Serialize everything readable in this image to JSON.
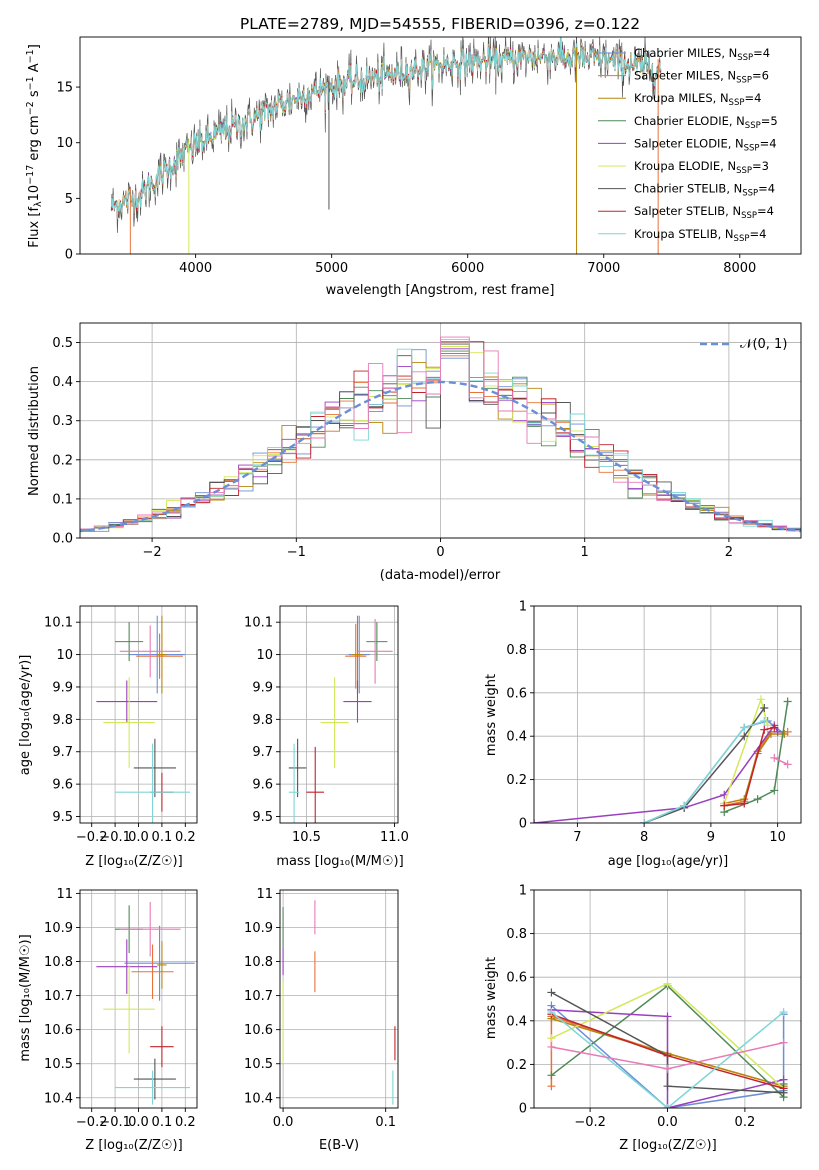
{
  "figure_title": "PLATE=2789, MJD=54555, FIBERID=0396, z=0.122",
  "colors": {
    "Chabrier MILES": "#6b8fd6",
    "Salpeter MILES": "#e8733a",
    "Kroupa MILES": "#b8860b",
    "Chabrier ELODIE": "#4f8a56",
    "Salpeter ELODIE": "#9a3fbf",
    "Kroupa ELODIE": "#d4e85a",
    "Chabrier STELIB": "#555555",
    "Salpeter STELIB": "#c0242a",
    "Kroupa STELIB": "#7fd6d6",
    "pink": "#e87ab8",
    "gaussian": "#6b8fd6"
  },
  "chart_data": [
    {
      "type": "line",
      "id": "spectrum",
      "title": "PLATE=2789, MJD=54555, FIBERID=0396, z=0.122",
      "xlabel": "wavelength [Angstrom, rest frame]",
      "ylabel_parts": [
        "Flux [f",
        "λ",
        "10",
        "−17",
        " erg cm",
        "−2",
        " s",
        "−1",
        " A",
        "−1",
        "]"
      ],
      "xlim": [
        3150,
        8450
      ],
      "ylim": [
        0,
        19.5
      ],
      "xticks": [
        4000,
        5000,
        6000,
        7000,
        8000
      ],
      "yticks": [
        0,
        5,
        10,
        15
      ],
      "spectrum_anchors": {
        "x": [
          3400,
          3600,
          3800,
          4000,
          4200,
          4400,
          4600,
          4800,
          5000,
          5200,
          5400,
          5600,
          5800,
          6000,
          6200,
          6400,
          6600,
          6800,
          7000,
          7200,
          7400
        ],
        "y": [
          4.3,
          5.3,
          7.8,
          9.8,
          11.0,
          12.0,
          13.3,
          14.3,
          15.1,
          15.6,
          16.0,
          16.6,
          17.0,
          17.3,
          17.3,
          17.6,
          17.8,
          17.6,
          17.5,
          17.0,
          16.5
        ]
      },
      "legend": {
        "placement": "top-right",
        "entries": [
          {
            "pre": "Chabrier MILES, N",
            "sub": "SSP",
            "post": "=4"
          },
          {
            "pre": "Salpeter MILES, N",
            "sub": "SSP",
            "post": "=6"
          },
          {
            "pre": "Kroupa MILES, N",
            "sub": "SSP",
            "post": "=4"
          },
          {
            "pre": "Chabrier ELODIE, N",
            "sub": "SSP",
            "post": "=5"
          },
          {
            "pre": "Salpeter ELODIE, N",
            "sub": "SSP",
            "post": "=4"
          },
          {
            "pre": "Kroupa ELODIE, N",
            "sub": "SSP",
            "post": "=3"
          },
          {
            "pre": "Chabrier STELIB, N",
            "sub": "SSP",
            "post": "=4"
          },
          {
            "pre": "Salpeter STELIB, N",
            "sub": "SSP",
            "post": "=4"
          },
          {
            "pre": "Kroupa STELIB, N",
            "sub": "SSP",
            "post": "=4"
          }
        ]
      }
    },
    {
      "type": "line",
      "id": "residuals",
      "subtype": "step-histograms",
      "xlabel": "(data-model)/error",
      "ylabel": "Normed distribution",
      "xlim": [
        -2.5,
        2.5
      ],
      "ylim": [
        0,
        0.55
      ],
      "xticks": [
        -2,
        -1,
        0,
        1,
        2
      ],
      "xtick_labels": [
        "−2",
        "−1",
        "0",
        "1",
        "2"
      ],
      "yticks": [
        0.0,
        0.1,
        0.2,
        0.3,
        0.4,
        0.5
      ],
      "ytick_labels": [
        "0.0",
        "0.1",
        "0.2",
        "0.3",
        "0.4",
        "0.5"
      ],
      "grid": true,
      "bin_width": 0.1,
      "legend": {
        "placement": "top-right",
        "label": "𝒩(0, 1)"
      }
    },
    {
      "type": "scatter",
      "id": "age-vs-Z",
      "xlabel": "Z [log₁₀(Z/Z☉)]",
      "ylabel": "age  [log₁₀(age/yr)]",
      "xlim": [
        -0.25,
        0.25
      ],
      "ylim": [
        9.48,
        10.15
      ],
      "xticks": [
        -0.2,
        -0.1,
        0.0,
        0.1,
        0.2
      ],
      "xtick_labels": [
        "−0.2",
        "−0.1",
        "0.0",
        "0.1",
        "0.2"
      ],
      "yticks": [
        9.5,
        9.6,
        9.7,
        9.8,
        9.9,
        10.0,
        10.1
      ],
      "grid": true,
      "errorbars": [
        {
          "color": "Chabrier MILES",
          "x": 0.08,
          "xerr": 0.12,
          "y": 10.0,
          "yerr": 0.12
        },
        {
          "color": "Salpeter MILES",
          "x": 0.09,
          "xerr": 0.1,
          "y": 9.995,
          "yerr": 0.07
        },
        {
          "color": "Kroupa MILES",
          "x": 0.1,
          "xerr": 0.02,
          "y": 10.0,
          "yerr": 0.12
        },
        {
          "color": "Chabrier ELODIE",
          "x": -0.04,
          "xerr": 0.06,
          "y": 10.04,
          "yerr": 0.06
        },
        {
          "color": "Salpeter ELODIE",
          "x": -0.05,
          "xerr": 0.13,
          "y": 9.855,
          "yerr": 0.065
        },
        {
          "color": "Kroupa ELODIE",
          "x": -0.04,
          "xerr": 0.11,
          "y": 9.79,
          "yerr": 0.14
        },
        {
          "color": "Chabrier STELIB",
          "x": 0.07,
          "xerr": 0.09,
          "y": 9.65,
          "yerr": 0.09
        },
        {
          "color": "Salpeter STELIB",
          "x": 0.1,
          "xerr": 0.05,
          "y": 9.575,
          "yerr": 0.06
        },
        {
          "color": "Kroupa STELIB",
          "x": 0.06,
          "xerr": 0.16,
          "y": 9.575,
          "yerr": 0.15
        },
        {
          "color": "pink",
          "x": 0.05,
          "xerr": 0.13,
          "y": 10.01,
          "yerr": 0.08
        }
      ]
    },
    {
      "type": "scatter",
      "id": "age-vs-mass",
      "xlabel": "mass [log₁₀(M/M☉)]",
      "ylabel": "",
      "xlim": [
        10.35,
        11.02
      ],
      "ylim": [
        9.48,
        10.15
      ],
      "xticks": [
        10.5,
        11.0
      ],
      "xtick_labels": [
        "10.5",
        "11.0"
      ],
      "yticks": [
        9.5,
        9.6,
        9.7,
        9.8,
        9.9,
        10.0,
        10.1
      ],
      "grid": true,
      "errorbars": [
        {
          "color": "Chabrier MILES",
          "x": 10.8,
          "xerr": 0.06,
          "y": 10.0,
          "yerr": 0.12
        },
        {
          "color": "Salpeter MILES",
          "x": 10.78,
          "xerr": 0.06,
          "y": 9.995,
          "yerr": 0.1
        },
        {
          "color": "Kroupa MILES",
          "x": 10.79,
          "xerr": 0.03,
          "y": 10.0,
          "yerr": 0.12
        },
        {
          "color": "Chabrier ELODIE",
          "x": 10.9,
          "xerr": 0.06,
          "y": 10.04,
          "yerr": 0.06
        },
        {
          "color": "Salpeter ELODIE",
          "x": 10.79,
          "xerr": 0.08,
          "y": 9.855,
          "yerr": 0.065
        },
        {
          "color": "Kroupa ELODIE",
          "x": 10.66,
          "xerr": 0.08,
          "y": 9.79,
          "yerr": 0.14
        },
        {
          "color": "Chabrier STELIB",
          "x": 10.45,
          "xerr": 0.05,
          "y": 9.65,
          "yerr": 0.09
        },
        {
          "color": "Salpeter STELIB",
          "x": 10.55,
          "xerr": 0.05,
          "y": 9.575,
          "yerr": 0.14
        },
        {
          "color": "Kroupa STELIB",
          "x": 10.43,
          "xerr": 0.03,
          "y": 9.575,
          "yerr": 0.15
        },
        {
          "color": "pink",
          "x": 10.89,
          "xerr": 0.1,
          "y": 10.01,
          "yerr": 0.1
        }
      ]
    },
    {
      "type": "line",
      "id": "massweight-vs-age",
      "xlabel": "age  [log₁₀(age/yr)]",
      "ylabel": "mass weight",
      "xlim": [
        6.35,
        10.35
      ],
      "ylim": [
        0,
        1.0
      ],
      "xticks": [
        7,
        8,
        9,
        10
      ],
      "yticks": [
        0.0,
        0.2,
        0.4,
        0.6,
        0.8,
        1.0
      ],
      "grid": true,
      "series": [
        {
          "color": "Chabrier MILES",
          "x": [
            8.0,
            8.6,
            9.5,
            9.85,
            10.1
          ],
          "y": [
            0.0,
            0.08,
            0.44,
            0.47,
            0.41
          ]
        },
        {
          "color": "Salpeter MILES",
          "x": [
            9.2,
            9.5,
            9.7,
            9.9,
            10.15
          ],
          "y": [
            0.08,
            0.1,
            0.33,
            0.42,
            0.42
          ]
        },
        {
          "color": "Kroupa MILES",
          "x": [
            9.2,
            9.5,
            9.7,
            9.9,
            10.1
          ],
          "y": [
            0.09,
            0.11,
            0.32,
            0.41,
            0.41
          ]
        },
        {
          "color": "Chabrier ELODIE",
          "x": [
            9.2,
            9.7,
            9.95,
            10.15
          ],
          "y": [
            0.05,
            0.11,
            0.15,
            0.56
          ]
        },
        {
          "color": "Salpeter ELODIE",
          "x": [
            6.35,
            8.6,
            9.2,
            9.95,
            10.0
          ],
          "y": [
            0.0,
            0.07,
            0.13,
            0.45,
            0.42
          ]
        },
        {
          "color": "Kroupa ELODIE",
          "x": [
            9.2,
            9.75,
            9.85
          ],
          "y": [
            0.09,
            0.57,
            0.45
          ]
        },
        {
          "color": "Chabrier STELIB",
          "x": [
            8.0,
            8.6,
            9.5,
            9.8
          ],
          "y": [
            0.0,
            0.07,
            0.4,
            0.53
          ]
        },
        {
          "color": "Salpeter STELIB",
          "x": [
            9.2,
            9.5,
            9.8,
            9.95
          ],
          "y": [
            0.08,
            0.09,
            0.43,
            0.44
          ]
        },
        {
          "color": "Kroupa STELIB",
          "x": [
            8.0,
            8.6,
            9.5,
            9.8
          ],
          "y": [
            0.0,
            0.08,
            0.44,
            0.47
          ]
        },
        {
          "color": "pink",
          "x": [
            9.95,
            10.15
          ],
          "y": [
            0.3,
            0.27
          ]
        }
      ]
    },
    {
      "type": "scatter",
      "id": "mass-vs-Z",
      "xlabel": "Z [log₁₀(Z/Z☉)]",
      "ylabel": "mass [log₁₀(M/M☉)]",
      "xlim": [
        -0.25,
        0.25
      ],
      "ylim": [
        10.37,
        11.01
      ],
      "xticks": [
        -0.2,
        -0.1,
        0.0,
        0.1,
        0.2
      ],
      "xtick_labels": [
        "−0.2",
        "−0.1",
        "0.0",
        "0.1",
        "0.2"
      ],
      "yticks": [
        10.4,
        10.5,
        10.6,
        10.7,
        10.8,
        10.9,
        11.0
      ],
      "grid": true,
      "errorbars": [
        {
          "color": "Chabrier MILES",
          "x": 0.09,
          "xerr": 0.15,
          "y": 10.795,
          "yerr": 0.11
        },
        {
          "color": "Salpeter MILES",
          "x": 0.06,
          "xerr": 0.09,
          "y": 10.77,
          "yerr": 0.08
        },
        {
          "color": "Kroupa MILES",
          "x": 0.1,
          "xerr": 0.02,
          "y": 10.79,
          "yerr": 0.07
        },
        {
          "color": "Chabrier ELODIE",
          "x": -0.04,
          "xerr": 0.06,
          "y": 10.895,
          "yerr": 0.07
        },
        {
          "color": "Salpeter ELODIE",
          "x": -0.05,
          "xerr": 0.13,
          "y": 10.785,
          "yerr": 0.08
        },
        {
          "color": "Kroupa ELODIE",
          "x": -0.04,
          "xerr": 0.11,
          "y": 10.66,
          "yerr": 0.13
        },
        {
          "color": "Chabrier STELIB",
          "x": 0.07,
          "xerr": 0.09,
          "y": 10.455,
          "yerr": 0.06
        },
        {
          "color": "Salpeter STELIB",
          "x": 0.1,
          "xerr": 0.05,
          "y": 10.55,
          "yerr": 0.06
        },
        {
          "color": "Kroupa STELIB",
          "x": 0.06,
          "xerr": 0.16,
          "y": 10.43,
          "yerr": 0.05
        },
        {
          "color": "pink",
          "x": 0.05,
          "xerr": 0.13,
          "y": 10.895,
          "yerr": 0.08
        }
      ]
    },
    {
      "type": "scatter",
      "id": "mass-vs-EBV",
      "xlabel": "E(B-V)",
      "ylabel": "",
      "xlim": [
        -0.003,
        0.112
      ],
      "ylim": [
        10.37,
        11.01
      ],
      "xticks": [
        0.0,
        0.1
      ],
      "xtick_labels": [
        "0.0",
        "0.1"
      ],
      "yticks": [
        10.4,
        10.5,
        10.6,
        10.7,
        10.8,
        10.9,
        11.0
      ],
      "grid": true,
      "errorbars": [
        {
          "color": "Chabrier ELODIE",
          "x": 0.0,
          "xerr": 0,
          "y": 10.9,
          "yerr": 0.06
        },
        {
          "color": "Salpeter ELODIE",
          "x": 0.0,
          "xerr": 0,
          "y": 10.8,
          "yerr": 0.04
        },
        {
          "color": "Kroupa ELODIE",
          "x": 0.0,
          "xerr": 0,
          "y": 10.62,
          "yerr": 0.12
        },
        {
          "color": "Salpeter MILES",
          "x": 0.031,
          "xerr": 0,
          "y": 10.77,
          "yerr": 0.06
        },
        {
          "color": "pink",
          "x": 0.031,
          "xerr": 0,
          "y": 10.93,
          "yerr": 0.05
        },
        {
          "color": "Salpeter STELIB",
          "x": 0.109,
          "xerr": 0,
          "y": 10.56,
          "yerr": 0.05
        },
        {
          "color": "Kroupa STELIB",
          "x": 0.107,
          "xerr": 0,
          "y": 10.43,
          "yerr": 0.05
        }
      ]
    },
    {
      "type": "line",
      "id": "massweight-vs-Z",
      "xlabel": "Z [log₁₀(Z/Z☉)]",
      "ylabel": "mass weight",
      "xlim": [
        -0.345,
        0.345
      ],
      "ylim": [
        0,
        1.0
      ],
      "xticks": [
        -0.2,
        0.0,
        0.2
      ],
      "xtick_labels": [
        "−0.2",
        "0.0",
        "0.2"
      ],
      "yticks": [
        0.0,
        0.2,
        0.4,
        0.6,
        0.8,
        1.0
      ],
      "grid": true,
      "series": [
        {
          "color": "Chabrier MILES",
          "x": [
            -0.3,
            0.0,
            0.3,
            0.3
          ],
          "y": [
            0.47,
            0.0,
            0.08,
            0.43
          ]
        },
        {
          "color": "Salpeter MILES",
          "x": [
            -0.3,
            -0.3,
            0.0,
            0.3
          ],
          "y": [
            0.1,
            0.42,
            0.25,
            0.1
          ]
        },
        {
          "color": "Kroupa MILES",
          "x": [
            -0.3,
            0.0,
            0.3
          ],
          "y": [
            0.41,
            0.25,
            0.1
          ]
        },
        {
          "color": "Chabrier ELODIE",
          "x": [
            -0.3,
            0.0,
            0.3,
            0.3
          ],
          "y": [
            0.15,
            0.56,
            0.05,
            0.11
          ]
        },
        {
          "color": "Salpeter ELODIE",
          "x": [
            -0.3,
            0.0,
            0.0,
            0.3
          ],
          "y": [
            0.45,
            0.42,
            0.0,
            0.13
          ]
        },
        {
          "color": "Kroupa ELODIE",
          "x": [
            -0.3,
            0.0,
            0.3
          ],
          "y": [
            0.32,
            0.57,
            0.09
          ]
        },
        {
          "color": "Chabrier STELIB",
          "x": [
            -0.3,
            0.0,
            0.0,
            0.3
          ],
          "y": [
            0.53,
            0.24,
            0.1,
            0.07
          ]
        },
        {
          "color": "Salpeter STELIB",
          "x": [
            -0.3,
            0.0,
            0.3
          ],
          "y": [
            0.43,
            0.24,
            0.09
          ]
        },
        {
          "color": "Kroupa STELIB",
          "x": [
            -0.3,
            0.0,
            0.3
          ],
          "y": [
            0.44,
            0.0,
            0.44
          ]
        },
        {
          "color": "pink",
          "x": [
            -0.3,
            0.0,
            0.3
          ],
          "y": [
            0.28,
            0.18,
            0.3
          ]
        }
      ]
    }
  ]
}
